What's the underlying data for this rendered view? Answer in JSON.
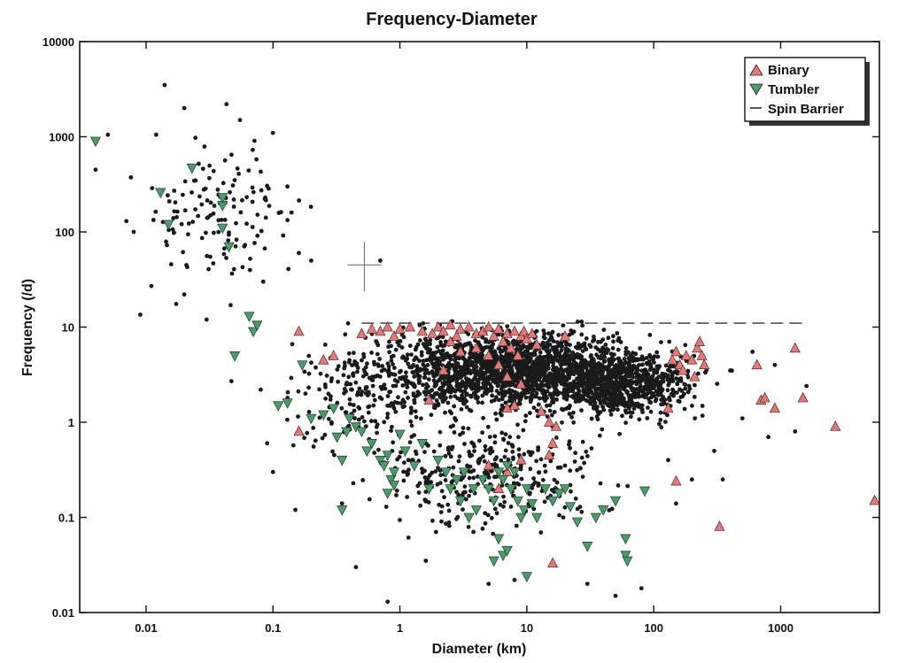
{
  "chart_data": {
    "type": "scatter",
    "title": "Frequency-Diameter",
    "xlabel": "Diameter (km)",
    "ylabel": "Frequency (/d)",
    "x_scale": "log",
    "y_scale": "log",
    "xlim": [
      0.003,
      6000
    ],
    "ylim": [
      0.01,
      10000
    ],
    "x_ticks": [
      0.01,
      0.1,
      1,
      10,
      100,
      1000
    ],
    "x_tick_labels": [
      "0.01",
      "0.1",
      "1",
      "10",
      "100",
      "1000"
    ],
    "y_ticks": [
      0.01,
      0.1,
      1,
      10,
      100,
      1000,
      10000
    ],
    "y_tick_labels": [
      "0.01",
      "0.1",
      "1",
      "10",
      "100",
      "1000",
      "10000"
    ],
    "grid": false,
    "legend_position": "top-right",
    "legend": [
      "Binary",
      "Tumbler",
      "Spin Barrier"
    ],
    "colors": {
      "general": "#1a1a1a",
      "binary": "#e07a7a",
      "tumbler": "#4f9a6a",
      "spin_barrier": "#333333"
    },
    "series": [
      {
        "name": "",
        "kind": "asterisk-marker",
        "note_clusters": [
          {
            "x_center": 8,
            "y_center": 3.5,
            "x_spread_decades": 0.9,
            "y_spread_decades": 0.35,
            "count": 1800
          },
          {
            "x_center": 60,
            "y_center": 2.5,
            "x_spread_decades": 0.5,
            "y_spread_decades": 0.3,
            "count": 700
          },
          {
            "x_center": 0.04,
            "y_center": 150,
            "x_spread_decades": 0.5,
            "y_spread_decades": 0.7,
            "count": 130
          },
          {
            "x_center": 5,
            "y_center": 0.3,
            "x_spread_decades": 0.8,
            "y_spread_decades": 0.5,
            "count": 350
          },
          {
            "x_center": 0.5,
            "y_center": 2,
            "x_spread_decades": 0.5,
            "y_spread_decades": 0.5,
            "count": 180
          }
        ],
        "points": [
          [
            0.003,
            2800
          ],
          [
            0.003,
            520
          ],
          [
            0.005,
            1050
          ],
          [
            0.004,
            450
          ],
          [
            0.007,
            130
          ],
          [
            0.008,
            100
          ],
          [
            0.009,
            13.5
          ],
          [
            0.011,
            27
          ],
          [
            0.012,
            1050
          ],
          [
            0.014,
            3500
          ],
          [
            0.02,
            2000
          ],
          [
            0.026,
            520
          ],
          [
            0.043,
            2200
          ],
          [
            0.055,
            1500
          ],
          [
            0.1,
            1100
          ],
          [
            0.08,
            430
          ],
          [
            0.13,
            300
          ],
          [
            0.14,
            160
          ],
          [
            0.16,
            60
          ],
          [
            0.2,
            50
          ],
          [
            0.7,
            50
          ],
          [
            0.02,
            22
          ],
          [
            0.03,
            12
          ],
          [
            0.047,
            2.7
          ],
          [
            0.08,
            2.2
          ],
          [
            0.09,
            0.6
          ],
          [
            0.1,
            0.3
          ],
          [
            0.15,
            0.12
          ],
          [
            0.35,
            0.14
          ],
          [
            0.45,
            0.03
          ],
          [
            0.8,
            0.013
          ],
          [
            1.6,
            0.035
          ],
          [
            5,
            0.02
          ],
          [
            8,
            0.022
          ],
          [
            30,
            0.02
          ],
          [
            50,
            0.015
          ],
          [
            80,
            0.018
          ],
          [
            150,
            0.14
          ],
          [
            200,
            0.25
          ],
          [
            300,
            0.5
          ],
          [
            500,
            1.1
          ],
          [
            800,
            0.7
          ],
          [
            1600,
            2.4
          ],
          [
            1300,
            0.8
          ],
          [
            600,
            5.5
          ],
          [
            900,
            4
          ],
          [
            400,
            3.5
          ],
          [
            350,
            0.25
          ],
          [
            130,
            0.4
          ]
        ]
      },
      {
        "name": "Binary",
        "marker": "triangle-up",
        "points": [
          [
            0.16,
            9
          ],
          [
            0.16,
            0.8
          ],
          [
            0.25,
            4.5
          ],
          [
            0.3,
            5
          ],
          [
            0.5,
            8.5
          ],
          [
            0.6,
            9.5
          ],
          [
            0.7,
            9
          ],
          [
            0.8,
            10
          ],
          [
            0.9,
            8
          ],
          [
            1.0,
            9.5
          ],
          [
            1.2,
            10
          ],
          [
            1.5,
            9
          ],
          [
            1.8,
            8.5
          ],
          [
            2.0,
            10
          ],
          [
            2.2,
            9
          ],
          [
            2.5,
            10.5
          ],
          [
            2.8,
            8
          ],
          [
            3,
            9.5
          ],
          [
            3.5,
            10
          ],
          [
            4,
            8.5
          ],
          [
            4.5,
            9
          ],
          [
            5,
            10
          ],
          [
            5.5,
            8
          ],
          [
            6,
            9.5
          ],
          [
            6.5,
            7
          ],
          [
            7,
            8.5
          ],
          [
            7.5,
            6
          ],
          [
            8,
            9
          ],
          [
            8.5,
            5
          ],
          [
            9,
            8
          ],
          [
            9.5,
            9
          ],
          [
            10,
            7.5
          ],
          [
            11,
            8.5
          ],
          [
            12,
            6.5
          ],
          [
            4,
            6
          ],
          [
            5,
            5
          ],
          [
            6,
            4
          ],
          [
            3,
            5.5
          ],
          [
            2.5,
            7
          ],
          [
            7,
            3
          ],
          [
            9,
            2.5
          ],
          [
            2.2,
            3.5
          ],
          [
            1.7,
            1.7
          ],
          [
            7,
            1.4
          ],
          [
            8,
            1.5
          ],
          [
            13,
            1.3
          ],
          [
            15,
            1.0
          ],
          [
            16,
            0.6
          ],
          [
            17,
            0.9
          ],
          [
            5,
            0.35
          ],
          [
            6,
            0.2
          ],
          [
            7,
            0.3
          ],
          [
            9,
            0.4
          ],
          [
            15,
            0.45
          ],
          [
            16,
            0.033
          ],
          [
            20,
            8
          ],
          [
            140,
            4.5
          ],
          [
            150,
            5.5
          ],
          [
            160,
            4
          ],
          [
            170,
            3.5
          ],
          [
            180,
            5
          ],
          [
            200,
            4.5
          ],
          [
            210,
            3
          ],
          [
            220,
            6
          ],
          [
            230,
            7
          ],
          [
            240,
            5
          ],
          [
            250,
            4
          ],
          [
            130,
            1.4
          ],
          [
            150,
            0.24
          ],
          [
            330,
            0.08
          ],
          [
            650,
            4
          ],
          [
            700,
            1.7
          ],
          [
            750,
            1.8
          ],
          [
            900,
            1.4
          ],
          [
            1300,
            6
          ],
          [
            1500,
            1.8
          ],
          [
            2700,
            0.9
          ],
          [
            5500,
            0.15
          ]
        ]
      },
      {
        "name": "Tumbler",
        "marker": "triangle-down",
        "points": [
          [
            0.004,
            900
          ],
          [
            0.013,
            260
          ],
          [
            0.015,
            120
          ],
          [
            0.023,
            470
          ],
          [
            0.04,
            190
          ],
          [
            0.04,
            110
          ],
          [
            0.045,
            70
          ],
          [
            0.04,
            230
          ],
          [
            0.065,
            13
          ],
          [
            0.07,
            9
          ],
          [
            0.075,
            10.5
          ],
          [
            0.05,
            5
          ],
          [
            0.11,
            1.5
          ],
          [
            0.13,
            1.6
          ],
          [
            0.17,
            4
          ],
          [
            0.2,
            1.1
          ],
          [
            0.25,
            1.2
          ],
          [
            0.3,
            1.4
          ],
          [
            0.32,
            0.7
          ],
          [
            0.35,
            0.4
          ],
          [
            0.38,
            0.8
          ],
          [
            0.4,
            1.1
          ],
          [
            0.45,
            0.9
          ],
          [
            0.5,
            0.8
          ],
          [
            0.55,
            0.5
          ],
          [
            0.6,
            0.6
          ],
          [
            0.7,
            0.4
          ],
          [
            0.75,
            0.35
          ],
          [
            0.8,
            0.45
          ],
          [
            0.85,
            0.25
          ],
          [
            0.9,
            0.3
          ],
          [
            1.1,
            0.5
          ],
          [
            1.3,
            0.35
          ],
          [
            1.5,
            0.6
          ],
          [
            1.7,
            0.2
          ],
          [
            2,
            0.4
          ],
          [
            2.3,
            0.3
          ],
          [
            2.5,
            0.2
          ],
          [
            2.8,
            0.25
          ],
          [
            3,
            0.15
          ],
          [
            3.2,
            0.3
          ],
          [
            3.5,
            0.1
          ],
          [
            3.8,
            0.2
          ],
          [
            4,
            0.12
          ],
          [
            4.5,
            0.25
          ],
          [
            5,
            0.2
          ],
          [
            5.5,
            0.15
          ],
          [
            6,
            0.3
          ],
          [
            6.5,
            0.25
          ],
          [
            7,
            0.35
          ],
          [
            7.5,
            0.2
          ],
          [
            8,
            0.3
          ],
          [
            8.5,
            0.15
          ],
          [
            9,
            0.1
          ],
          [
            9.5,
            0.12
          ],
          [
            10,
            0.2
          ],
          [
            11,
            0.14
          ],
          [
            12,
            0.1
          ],
          [
            14,
            0.2
          ],
          [
            16,
            0.15
          ],
          [
            18,
            0.18
          ],
          [
            20,
            0.2
          ],
          [
            22,
            0.13
          ],
          [
            25,
            0.09
          ],
          [
            30,
            0.05
          ],
          [
            35,
            0.1
          ],
          [
            40,
            0.12
          ],
          [
            50,
            0.15
          ],
          [
            60,
            0.06
          ],
          [
            60,
            0.04
          ],
          [
            62,
            0.035
          ],
          [
            85,
            0.19
          ],
          [
            6,
            0.06
          ],
          [
            6.5,
            0.04
          ],
          [
            5.5,
            0.035
          ],
          [
            7,
            0.045
          ],
          [
            10,
            0.024
          ],
          [
            0.35,
            0.12
          ],
          [
            0.8,
            0.18
          ],
          [
            1.0,
            0.75
          ],
          [
            0.9,
            0.22
          ]
        ]
      },
      {
        "name": "Spin Barrier",
        "kind": "dashed-line",
        "points": [
          [
            0.5,
            11
          ],
          [
            1600,
            11
          ]
        ]
      }
    ],
    "annotations": [
      {
        "kind": "crosshair",
        "x": 0.5,
        "y": 45
      }
    ]
  }
}
